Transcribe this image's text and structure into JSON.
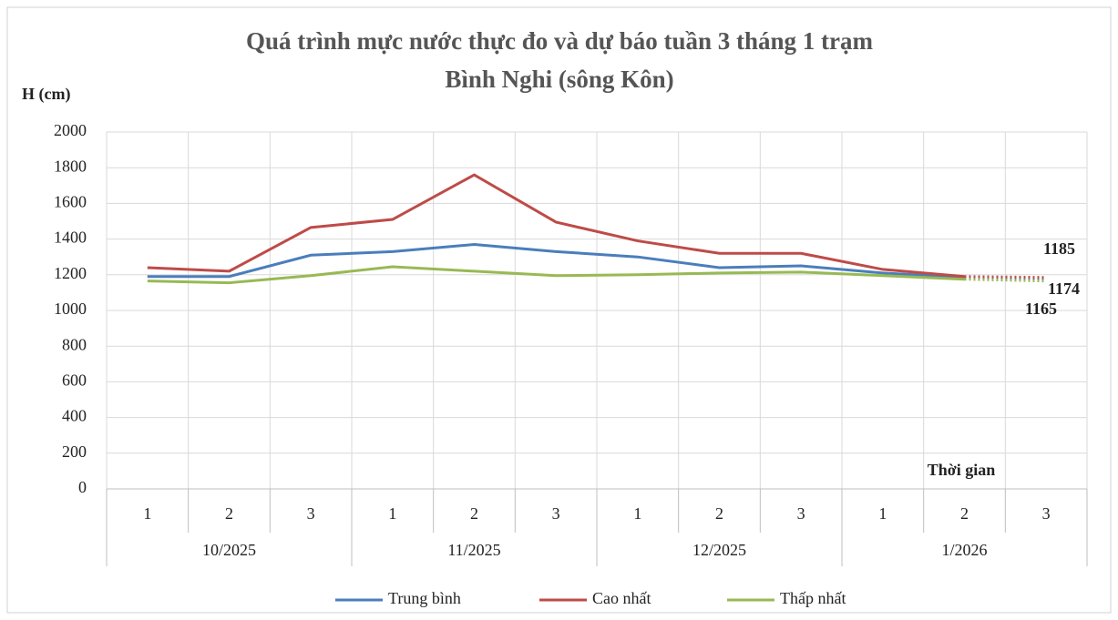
{
  "chart_data": {
    "type": "line",
    "title": [
      "Quá trình mực nước thực đo và dự báo tuần 3 tháng 1 trạm",
      "Bình Nghi (sông Kôn)"
    ],
    "y_label": "H (cm)",
    "x_label": "Thời gian",
    "categories": [
      "1",
      "2",
      "3",
      "1",
      "2",
      "3",
      "1",
      "2",
      "3",
      "1",
      "2",
      "3"
    ],
    "groups": [
      "10/2025",
      "11/2025",
      "12/2025",
      "1/2026"
    ],
    "series": [
      {
        "name": "Trung bình",
        "color": "#4a7ebb",
        "values": [
          1190,
          1190,
          1310,
          1330,
          1370,
          1330,
          1300,
          1240,
          1250,
          1210,
          1185,
          1174
        ]
      },
      {
        "name": "Cao nhất",
        "color": "#be4b48",
        "values": [
          1240,
          1220,
          1465,
          1510,
          1760,
          1495,
          1390,
          1320,
          1320,
          1230,
          1190,
          1185
        ]
      },
      {
        "name": "Thấp nhất",
        "color": "#98b954",
        "values": [
          1165,
          1155,
          1195,
          1245,
          1220,
          1195,
          1200,
          1210,
          1215,
          1195,
          1175,
          1165
        ]
      }
    ],
    "ylim": [
      0,
      2000
    ],
    "yticks": [
      0,
      200,
      400,
      600,
      800,
      1000,
      1200,
      1400,
      1600,
      1800,
      2000
    ],
    "grid": true,
    "legend": "bottom"
  }
}
